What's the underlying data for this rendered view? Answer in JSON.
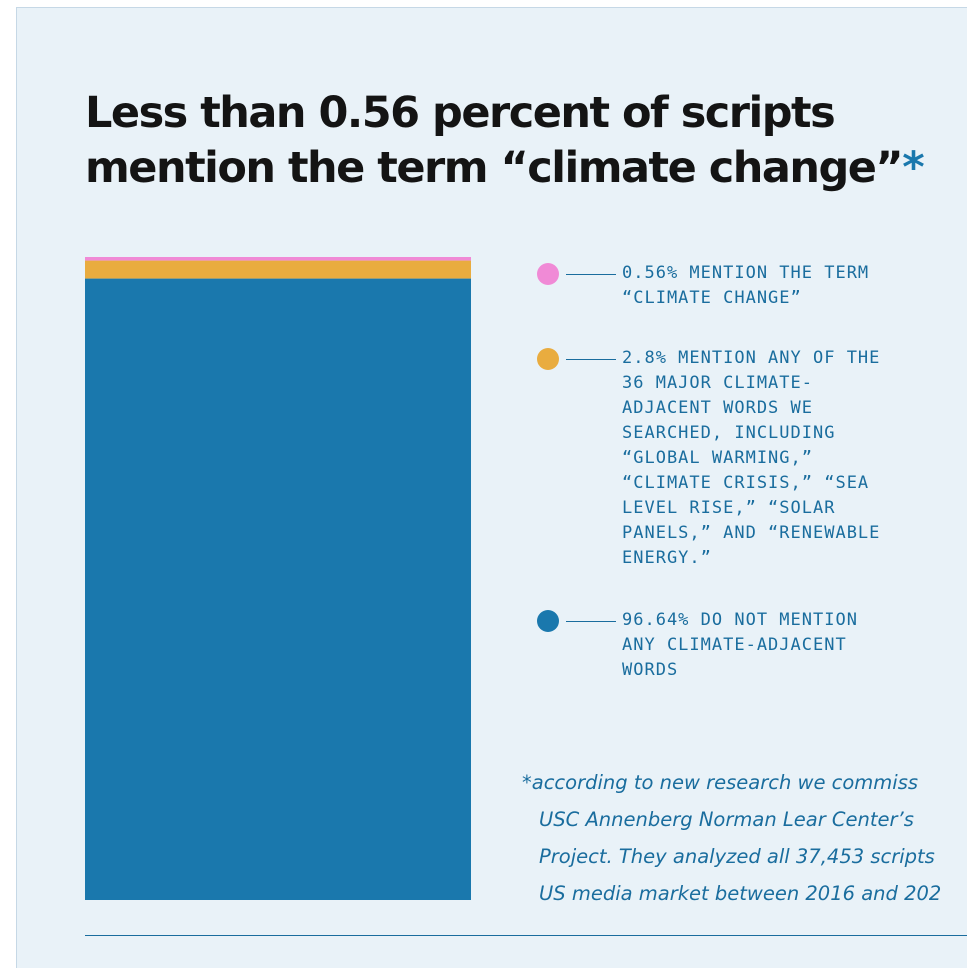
{
  "title_line1": "Less than 0.56 percent of scripts",
  "title_line2": "mention the term “climate change”",
  "title_asterisk": "*",
  "chart_data": {
    "type": "bar",
    "stacked": true,
    "orientation": "vertical",
    "categories": [
      ""
    ],
    "series": [
      {
        "name": "0.56% MENTION THE TERM “CLIMATE CHANGE”",
        "values": [
          0.56
        ],
        "color": "#f08ad6"
      },
      {
        "name": "2.8% MENTION ANY OF THE 36 MAJOR CLIMATE-ADJACENT WORDS WE SEARCHED, INCLUDING “GLOBAL WARMING,” “CLIMATE CRISIS,” “SEA LEVEL RISE,” “SOLAR PANELS,” AND “RENEWABLE ENERGY.”",
        "values": [
          2.8
        ],
        "color": "#e9ac3f"
      },
      {
        "name": "96.64% DO NOT MENTION ANY CLIMATE-ADJACENT WORDS",
        "values": [
          96.64
        ],
        "color": "#1a78ad"
      }
    ],
    "ylim": [
      0,
      100
    ],
    "grid": false,
    "legend_position": "right"
  },
  "legend": [
    {
      "text": "0.56% MENTION THE TERM\n“CLIMATE CHANGE”",
      "color": "#f08ad6"
    },
    {
      "text": "2.8% MENTION ANY OF THE\n36 MAJOR CLIMATE-\nADJACENT WORDS WE\nSEARCHED, INCLUDING\n“GLOBAL WARMING,”\n“CLIMATE CRISIS,” “SEA\nLEVEL RISE,” “SOLAR\nPANELS,” AND “RENEWABLE\nENERGY.”",
      "color": "#e9ac3f"
    },
    {
      "text": "96.64% DO NOT MENTION\nANY CLIMATE-ADJACENT\nWORDS",
      "color": "#1a78ad"
    }
  ],
  "footnote": {
    "line1": "*according to new research we commiss",
    "line2": "USC Annenberg Norman Lear Center’s",
    "line3": "Project. They analyzed all 37,453 scripts",
    "line4": "US media market between 2016 and 202"
  }
}
